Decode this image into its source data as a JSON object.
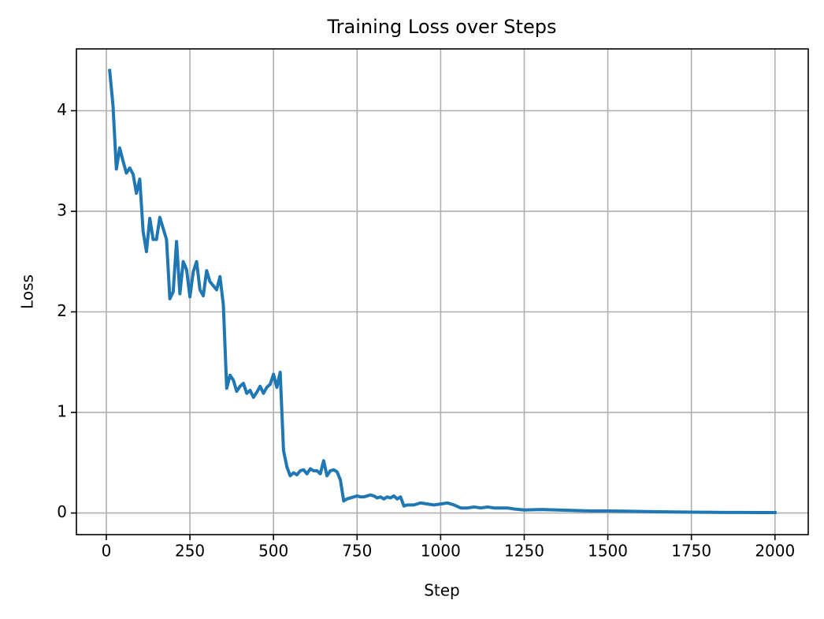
{
  "chart_data": {
    "type": "line",
    "title": "Training Loss over Steps",
    "x_label": "Step",
    "y_label": "Loss",
    "x": [
      10,
      20,
      30,
      40,
      50,
      60,
      70,
      80,
      90,
      100,
      110,
      120,
      130,
      140,
      150,
      160,
      170,
      180,
      190,
      200,
      210,
      220,
      230,
      240,
      250,
      260,
      270,
      280,
      290,
      300,
      310,
      320,
      330,
      340,
      350,
      360,
      370,
      380,
      390,
      400,
      410,
      420,
      430,
      440,
      450,
      460,
      470,
      480,
      490,
      500,
      510,
      520,
      530,
      540,
      550,
      560,
      570,
      580,
      590,
      600,
      610,
      620,
      630,
      640,
      650,
      660,
      670,
      680,
      690,
      700,
      710,
      720,
      730,
      740,
      750,
      760,
      770,
      780,
      790,
      800,
      810,
      820,
      830,
      840,
      850,
      860,
      870,
      880,
      890,
      900,
      920,
      940,
      960,
      980,
      1000,
      1020,
      1040,
      1060,
      1080,
      1100,
      1120,
      1140,
      1160,
      1180,
      1200,
      1220,
      1250,
      1300,
      1350,
      1400,
      1450,
      1500,
      1550,
      1600,
      1650,
      1700,
      1750,
      1800,
      1850,
      1900,
      1950,
      2000
    ],
    "series": [
      {
        "name": "Loss",
        "color": "#1f77b4",
        "values": [
          4.4,
          4.05,
          3.42,
          3.63,
          3.5,
          3.38,
          3.43,
          3.37,
          3.18,
          3.32,
          2.8,
          2.6,
          2.93,
          2.72,
          2.72,
          2.94,
          2.83,
          2.72,
          2.13,
          2.2,
          2.7,
          2.18,
          2.5,
          2.42,
          2.15,
          2.4,
          2.5,
          2.22,
          2.16,
          2.41,
          2.3,
          2.26,
          2.22,
          2.35,
          2.07,
          1.24,
          1.37,
          1.32,
          1.21,
          1.26,
          1.29,
          1.19,
          1.22,
          1.15,
          1.2,
          1.26,
          1.19,
          1.25,
          1.28,
          1.38,
          1.25,
          1.4,
          0.62,
          0.46,
          0.37,
          0.4,
          0.38,
          0.42,
          0.43,
          0.39,
          0.44,
          0.42,
          0.42,
          0.39,
          0.52,
          0.37,
          0.42,
          0.43,
          0.41,
          0.33,
          0.12,
          0.14,
          0.15,
          0.16,
          0.17,
          0.16,
          0.16,
          0.17,
          0.18,
          0.17,
          0.15,
          0.16,
          0.14,
          0.16,
          0.15,
          0.17,
          0.14,
          0.16,
          0.07,
          0.08,
          0.08,
          0.1,
          0.09,
          0.08,
          0.09,
          0.1,
          0.08,
          0.05,
          0.05,
          0.06,
          0.05,
          0.06,
          0.05,
          0.05,
          0.05,
          0.04,
          0.03,
          0.035,
          0.03,
          0.025,
          0.02,
          0.02,
          0.018,
          0.015,
          0.012,
          0.01,
          0.008,
          0.007,
          0.006,
          0.006,
          0.005,
          0.005
        ]
      }
    ],
    "xlim": [
      -89.5,
      2099.5
    ],
    "ylim": [
      -0.215,
      4.615
    ],
    "xticks": [
      0,
      250,
      500,
      750,
      1000,
      1250,
      1500,
      1750,
      2000
    ],
    "yticks": [
      0,
      1,
      2,
      3,
      4
    ],
    "grid": true
  }
}
